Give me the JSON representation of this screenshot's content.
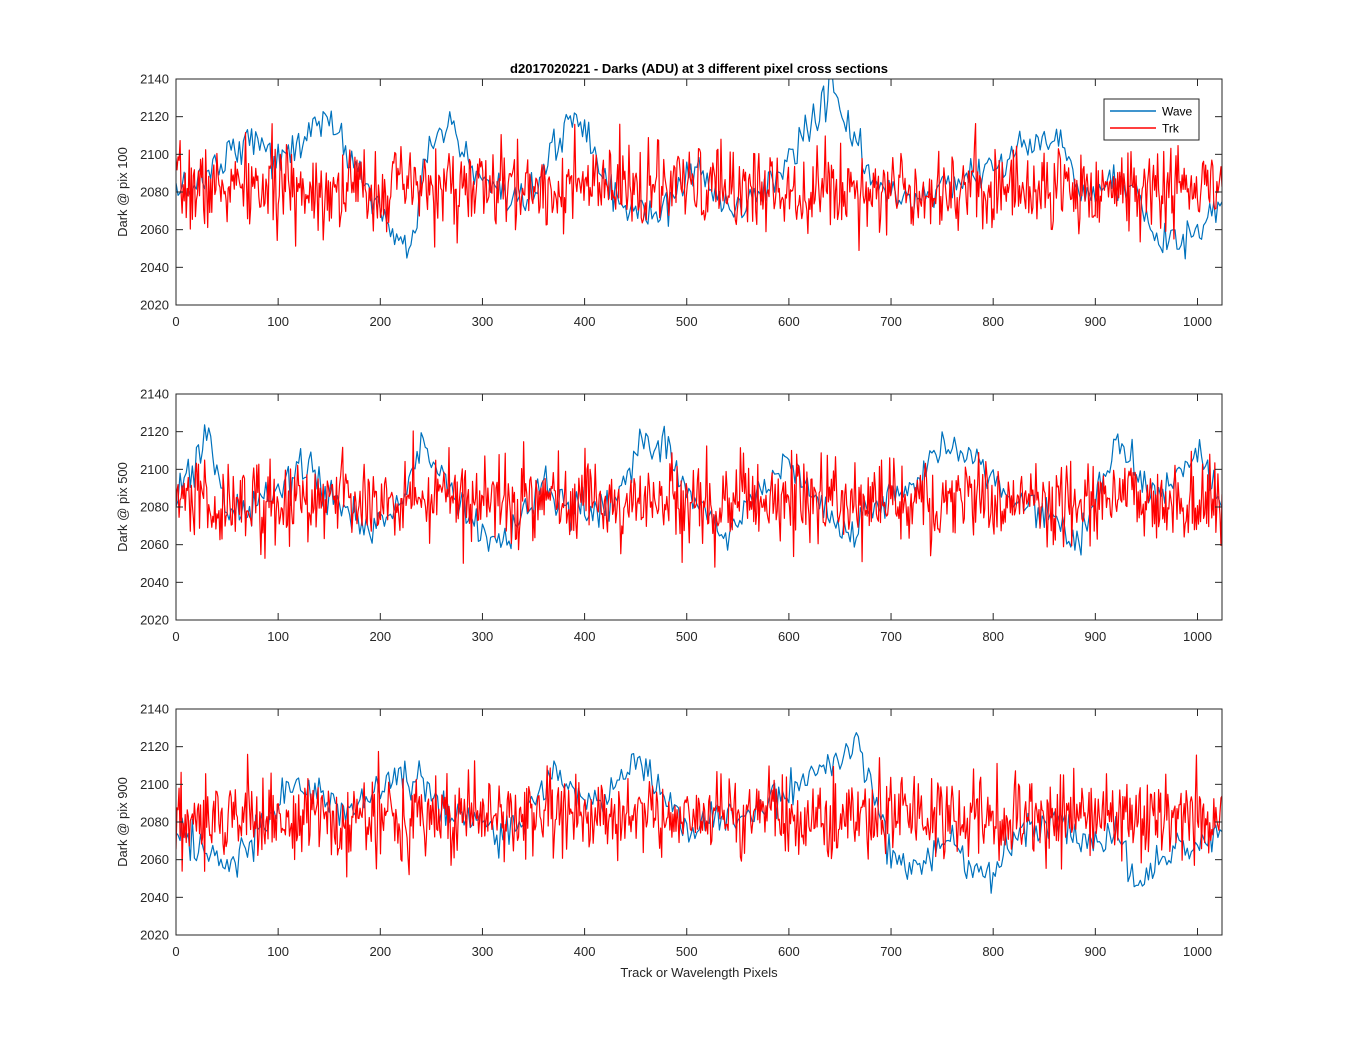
{
  "title": "d2017020221 - Darks (ADU) at 3 different pixel cross sections",
  "xlabel": "Track or Wavelength Pixels",
  "colors": {
    "Wave": "#0072BD",
    "Trk": "#FF0000",
    "axes": "#262626"
  },
  "chart_data": [
    {
      "type": "line",
      "ylabel": "Dark @ pix 100",
      "xlim": [
        0,
        1024
      ],
      "ylim": [
        2020,
        2140
      ],
      "xticks": [
        0,
        100,
        200,
        300,
        400,
        500,
        600,
        700,
        800,
        900,
        1000
      ],
      "yticks": [
        2020,
        2040,
        2060,
        2080,
        2100,
        2120,
        2140
      ],
      "grid": false,
      "legend": {
        "location": "top-right",
        "entries": [
          "Wave",
          "Trk"
        ]
      },
      "series": [
        {
          "name": "Wave",
          "color": "#0072BD",
          "x": [
            0,
            20,
            40,
            60,
            80,
            100,
            120,
            140,
            150,
            170,
            190,
            210,
            230,
            250,
            270,
            290,
            310,
            330,
            350,
            370,
            390,
            410,
            430,
            450,
            470,
            490,
            510,
            530,
            550,
            570,
            590,
            610,
            630,
            640,
            660,
            680,
            700,
            720,
            740,
            760,
            780,
            800,
            820,
            840,
            860,
            880,
            900,
            920,
            940,
            960,
            980,
            1000,
            1024
          ],
          "y": [
            2080,
            2085,
            2095,
            2105,
            2110,
            2095,
            2105,
            2120,
            2115,
            2100,
            2080,
            2060,
            2050,
            2110,
            2115,
            2090,
            2080,
            2070,
            2080,
            2100,
            2125,
            2100,
            2075,
            2070,
            2065,
            2080,
            2095,
            2075,
            2070,
            2080,
            2090,
            2105,
            2125,
            2135,
            2115,
            2085,
            2080,
            2075,
            2080,
            2085,
            2090,
            2095,
            2100,
            2105,
            2110,
            2090,
            2080,
            2085,
            2080,
            2055,
            2050,
            2060,
            2070
          ]
        },
        {
          "name": "Trk",
          "color": "#FF0000",
          "mean": 2082,
          "amplitude": 20,
          "x_start": 0,
          "x_end": 1024,
          "n_points": 1024
        }
      ]
    },
    {
      "type": "line",
      "ylabel": "Dark @ pix 500",
      "xlim": [
        0,
        1024
      ],
      "ylim": [
        2020,
        2140
      ],
      "xticks": [
        0,
        100,
        200,
        300,
        400,
        500,
        600,
        700,
        800,
        900,
        1000
      ],
      "yticks": [
        2020,
        2040,
        2060,
        2080,
        2100,
        2120,
        2140
      ],
      "grid": false,
      "series": [
        {
          "name": "Wave",
          "color": "#0072BD",
          "x": [
            0,
            20,
            30,
            50,
            70,
            90,
            110,
            130,
            150,
            170,
            190,
            210,
            230,
            240,
            260,
            280,
            300,
            320,
            340,
            360,
            380,
            400,
            420,
            440,
            460,
            480,
            500,
            520,
            540,
            560,
            580,
            600,
            620,
            640,
            660,
            680,
            700,
            720,
            740,
            760,
            780,
            800,
            820,
            840,
            860,
            880,
            900,
            920,
            940,
            960,
            980,
            1000,
            1024
          ],
          "y": [
            2085,
            2105,
            2115,
            2080,
            2075,
            2085,
            2095,
            2100,
            2085,
            2080,
            2065,
            2075,
            2095,
            2115,
            2100,
            2080,
            2065,
            2060,
            2075,
            2095,
            2080,
            2080,
            2075,
            2095,
            2115,
            2110,
            2090,
            2075,
            2065,
            2080,
            2095,
            2105,
            2090,
            2075,
            2065,
            2080,
            2085,
            2090,
            2110,
            2115,
            2105,
            2095,
            2080,
            2080,
            2075,
            2060,
            2080,
            2115,
            2100,
            2085,
            2095,
            2110,
            2080
          ]
        },
        {
          "name": "Trk",
          "color": "#FF0000",
          "mean": 2083,
          "amplitude": 20,
          "x_start": 0,
          "x_end": 1024,
          "n_points": 1024
        }
      ]
    },
    {
      "type": "line",
      "ylabel": "Dark @ pix 900",
      "xlim": [
        0,
        1024
      ],
      "ylim": [
        2020,
        2140
      ],
      "xticks": [
        0,
        100,
        200,
        300,
        400,
        500,
        600,
        700,
        800,
        900,
        1000
      ],
      "yticks": [
        2020,
        2040,
        2060,
        2080,
        2100,
        2120,
        2140
      ],
      "grid": false,
      "series": [
        {
          "name": "Wave",
          "color": "#0072BD",
          "x": [
            0,
            20,
            40,
            60,
            80,
            100,
            120,
            140,
            160,
            180,
            200,
            220,
            240,
            260,
            280,
            300,
            320,
            340,
            360,
            370,
            390,
            410,
            430,
            450,
            470,
            490,
            510,
            530,
            550,
            570,
            590,
            610,
            630,
            650,
            665,
            680,
            700,
            720,
            740,
            760,
            780,
            800,
            820,
            840,
            860,
            880,
            900,
            920,
            940,
            960,
            980,
            1000,
            1024
          ],
          "y": [
            2070,
            2070,
            2060,
            2060,
            2075,
            2090,
            2100,
            2095,
            2085,
            2090,
            2100,
            2105,
            2100,
            2090,
            2080,
            2080,
            2075,
            2080,
            2100,
            2115,
            2095,
            2090,
            2100,
            2115,
            2100,
            2080,
            2075,
            2085,
            2080,
            2085,
            2095,
            2100,
            2105,
            2115,
            2120,
            2100,
            2060,
            2055,
            2065,
            2070,
            2055,
            2050,
            2070,
            2080,
            2080,
            2075,
            2070,
            2075,
            2045,
            2060,
            2070,
            2065,
            2080
          ]
        },
        {
          "name": "Trk",
          "color": "#FF0000",
          "mean": 2083,
          "amplitude": 20,
          "x_start": 0,
          "x_end": 1024,
          "n_points": 1024
        }
      ]
    }
  ]
}
